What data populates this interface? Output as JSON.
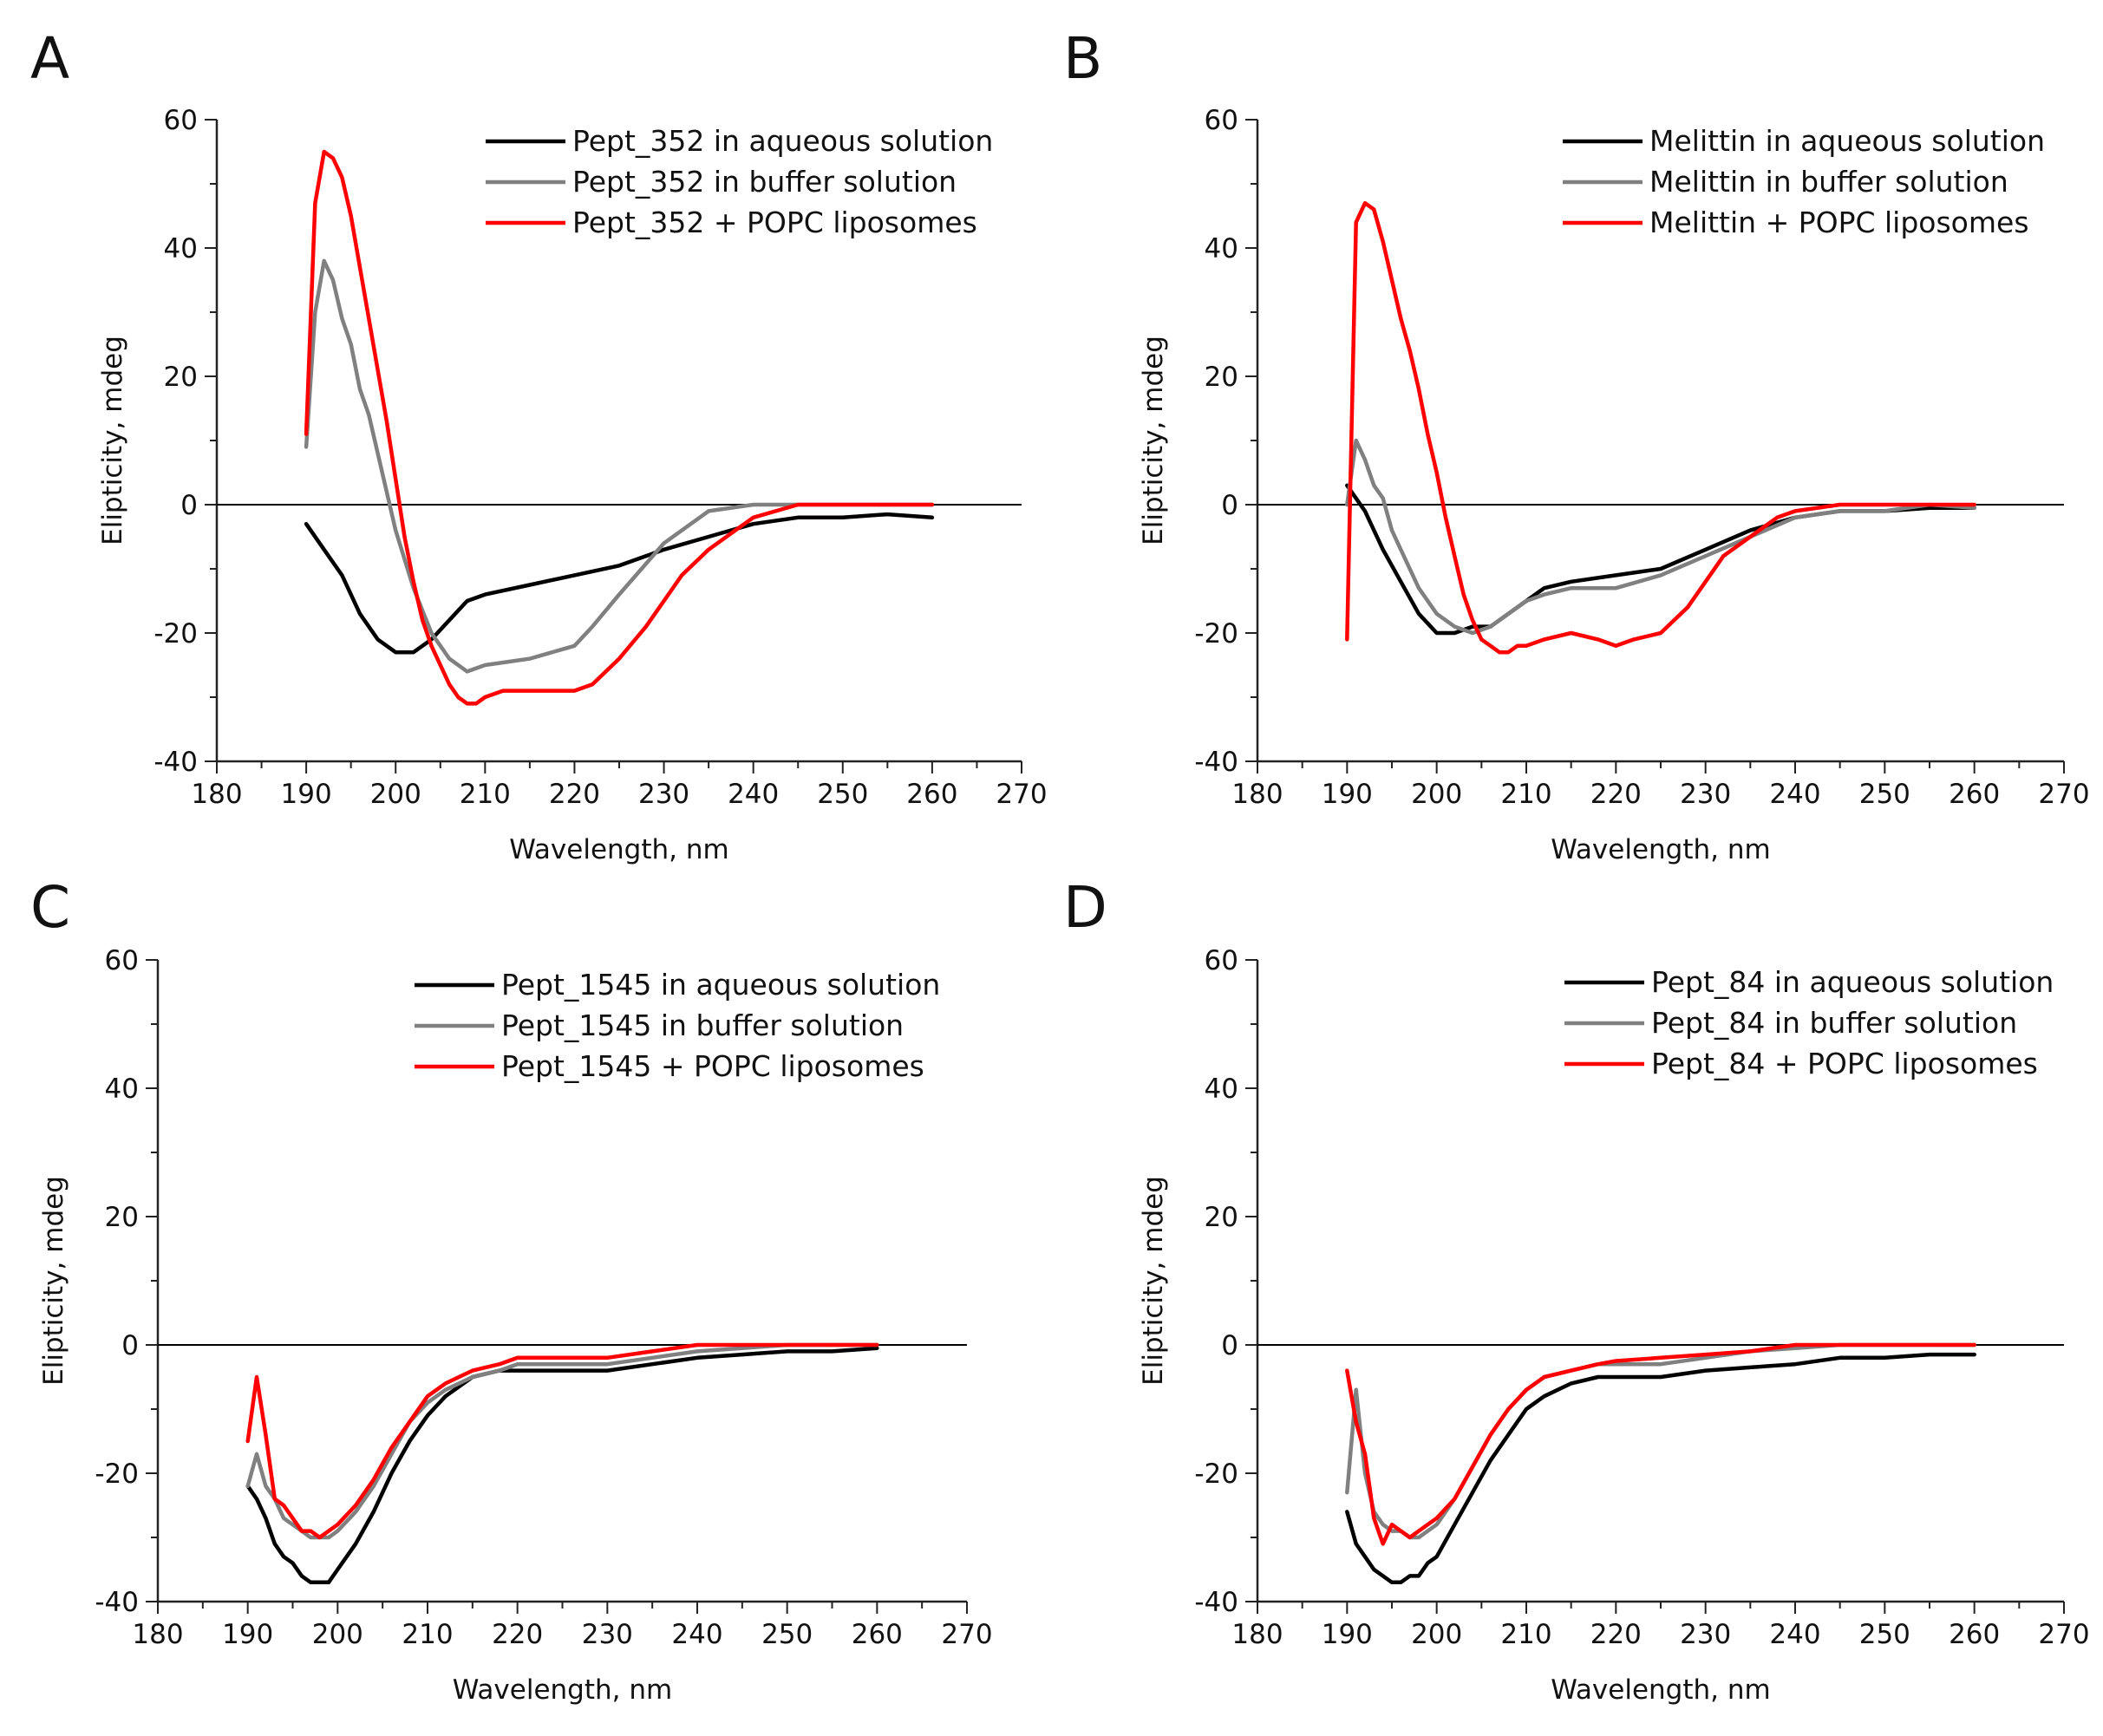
{
  "figure": {
    "panel_letters": [
      "A",
      "B",
      "C",
      "D"
    ]
  },
  "chart_data": [
    {
      "type": "line",
      "panel": "A",
      "xlabel": "Wavelength, nm",
      "ylabel": "Elipticity, mdeg",
      "xlim": [
        180,
        270
      ],
      "ylim": [
        -40,
        60
      ],
      "xticks": [
        180,
        190,
        200,
        210,
        220,
        230,
        240,
        250,
        260,
        270
      ],
      "yticks": [
        -40,
        -20,
        0,
        20,
        40,
        60
      ],
      "grid": false,
      "legend": "top-right",
      "series": [
        {
          "name": "Pept_352 in aqueous solution",
          "color": "#000000",
          "x": [
            190,
            192,
            194,
            196,
            198,
            200,
            202,
            204,
            206,
            208,
            210,
            215,
            220,
            225,
            230,
            235,
            240,
            245,
            250,
            255,
            260
          ],
          "y": [
            -3,
            -7,
            -11,
            -17,
            -21,
            -23,
            -23,
            -21,
            -18,
            -15,
            -14,
            -12.5,
            -11,
            -9.5,
            -7,
            -5,
            -3,
            -2,
            -2,
            -1.5,
            -2
          ]
        },
        {
          "name": "Pept_352 in buffer solution",
          "color": "#808080",
          "x": [
            190,
            191,
            192,
            193,
            194,
            195,
            196,
            197,
            198,
            199,
            200,
            202,
            204,
            206,
            208,
            210,
            215,
            220,
            222,
            225,
            230,
            235,
            240,
            245,
            250,
            255,
            260
          ],
          "y": [
            9,
            30,
            38,
            35,
            29,
            25,
            18,
            14,
            8,
            2,
            -4,
            -13,
            -20,
            -24,
            -26,
            -25,
            -24,
            -22,
            -19,
            -14,
            -6,
            -1,
            0,
            0,
            0,
            0,
            0
          ]
        },
        {
          "name": "Pept_352 + POPC liposomes",
          "color": "#ff0000",
          "x": [
            190,
            191,
            192,
            193,
            194,
            195,
            196,
            197,
            198,
            199,
            200,
            201,
            202,
            203,
            204,
            205,
            206,
            207,
            208,
            209,
            210,
            212,
            215,
            218,
            220,
            222,
            225,
            228,
            230,
            232,
            235,
            238,
            240,
            245,
            250,
            255,
            260
          ],
          "y": [
            11,
            47,
            55,
            54,
            51,
            45,
            37,
            29,
            21,
            13,
            4,
            -5,
            -12,
            -18,
            -22,
            -25,
            -28,
            -30,
            -31,
            -31,
            -30,
            -29,
            -29,
            -29,
            -29,
            -28,
            -24,
            -19,
            -15,
            -11,
            -7,
            -4,
            -2,
            0,
            0,
            0,
            0
          ]
        }
      ]
    },
    {
      "type": "line",
      "panel": "B",
      "xlabel": "Wavelength, nm",
      "ylabel": "Elipticity, mdeg",
      "xlim": [
        180,
        270
      ],
      "ylim": [
        -40,
        60
      ],
      "xticks": [
        180,
        190,
        200,
        210,
        220,
        230,
        240,
        250,
        260,
        270
      ],
      "yticks": [
        -40,
        -20,
        0,
        20,
        40,
        60
      ],
      "grid": false,
      "legend": "top-right",
      "series": [
        {
          "name": "Melittin in aqueous solution",
          "color": "#000000",
          "x": [
            190,
            192,
            194,
            196,
            198,
            200,
            202,
            204,
            206,
            208,
            210,
            212,
            215,
            220,
            225,
            230,
            235,
            240,
            245,
            250,
            255,
            260
          ],
          "y": [
            3,
            -1,
            -7,
            -12,
            -17,
            -20,
            -20,
            -19,
            -19,
            -17,
            -15,
            -13,
            -12,
            -11,
            -10,
            -7,
            -4,
            -2,
            -1,
            -1,
            -0.5,
            -0.5
          ]
        },
        {
          "name": "Melittin in buffer solution",
          "color": "#808080",
          "x": [
            190,
            191,
            192,
            193,
            194,
            195,
            196,
            198,
            200,
            202,
            204,
            206,
            208,
            210,
            212,
            215,
            220,
            225,
            230,
            235,
            240,
            245,
            250,
            255,
            260
          ],
          "y": [
            0,
            10,
            7,
            3,
            1,
            -4,
            -7,
            -13,
            -17,
            -19,
            -20,
            -19,
            -17,
            -15,
            -14,
            -13,
            -13,
            -11,
            -8,
            -5,
            -2,
            -1,
            -1,
            0,
            -0.5
          ]
        },
        {
          "name": "Melittin + POPC liposomes",
          "color": "#ff0000",
          "x": [
            190,
            191,
            192,
            193,
            194,
            195,
            196,
            197,
            198,
            199,
            200,
            201,
            202,
            203,
            204,
            205,
            206,
            207,
            208,
            209,
            210,
            212,
            215,
            218,
            220,
            222,
            225,
            228,
            230,
            232,
            235,
            238,
            240,
            245,
            250,
            255,
            260
          ],
          "y": [
            -21,
            44,
            47,
            46,
            41,
            35,
            29,
            24,
            18,
            11,
            5,
            -2,
            -8,
            -14,
            -18,
            -21,
            -22,
            -23,
            -23,
            -22,
            -22,
            -21,
            -20,
            -21,
            -22,
            -21,
            -20,
            -16,
            -12,
            -8,
            -5,
            -2,
            -1,
            0,
            0,
            0,
            0
          ]
        }
      ]
    },
    {
      "type": "line",
      "panel": "C",
      "xlabel": "Wavelength, nm",
      "ylabel": "Elipticity, mdeg",
      "xlim": [
        180,
        270
      ],
      "ylim": [
        -40,
        60
      ],
      "xticks": [
        180,
        190,
        200,
        210,
        220,
        230,
        240,
        250,
        260,
        270
      ],
      "yticks": [
        -40,
        -20,
        0,
        20,
        40,
        60
      ],
      "grid": false,
      "legend": "top-right",
      "series": [
        {
          "name": "Pept_1545 in aqueous solution",
          "color": "#000000",
          "x": [
            190,
            191,
            192,
            193,
            194,
            195,
            196,
            197,
            198,
            199,
            200,
            202,
            204,
            206,
            208,
            210,
            212,
            215,
            218,
            220,
            225,
            230,
            235,
            240,
            245,
            250,
            255,
            260
          ],
          "y": [
            -22,
            -24,
            -27,
            -31,
            -33,
            -34,
            -36,
            -37,
            -37,
            -37,
            -35,
            -31,
            -26,
            -20,
            -15,
            -11,
            -8,
            -5,
            -4,
            -4,
            -4,
            -4,
            -3,
            -2,
            -1.5,
            -1,
            -1,
            -0.5
          ]
        },
        {
          "name": "Pept_1545 in buffer solution",
          "color": "#808080",
          "x": [
            190,
            191,
            192,
            193,
            194,
            195,
            196,
            197,
            198,
            199,
            200,
            202,
            204,
            206,
            208,
            210,
            212,
            215,
            218,
            220,
            225,
            230,
            235,
            240,
            245,
            250,
            255,
            260
          ],
          "y": [
            -22,
            -17,
            -22,
            -24,
            -27,
            -28,
            -29,
            -30,
            -30,
            -30,
            -29,
            -26,
            -22,
            -17,
            -12,
            -9,
            -7,
            -5,
            -4,
            -3,
            -3,
            -3,
            -2,
            -1,
            -0.5,
            0,
            0,
            0
          ]
        },
        {
          "name": "Pept_1545 + POPC liposomes",
          "color": "#ff0000",
          "x": [
            190,
            191,
            192,
            193,
            194,
            195,
            196,
            197,
            198,
            199,
            200,
            202,
            204,
            206,
            208,
            210,
            212,
            215,
            218,
            220,
            225,
            230,
            235,
            240,
            245,
            250,
            255,
            260
          ],
          "y": [
            -15,
            -5,
            -14,
            -24,
            -25,
            -27,
            -29,
            -29,
            -30,
            -29,
            -28,
            -25,
            -21,
            -16,
            -12,
            -8,
            -6,
            -4,
            -3,
            -2,
            -2,
            -2,
            -1,
            0,
            0,
            0,
            0,
            0
          ]
        }
      ]
    },
    {
      "type": "line",
      "panel": "D",
      "xlabel": "Wavelength, nm",
      "ylabel": "Elipticity, mdeg",
      "xlim": [
        180,
        270
      ],
      "ylim": [
        -40,
        60
      ],
      "xticks": [
        180,
        190,
        200,
        210,
        220,
        230,
        240,
        250,
        260,
        270
      ],
      "yticks": [
        -40,
        -20,
        0,
        20,
        40,
        60
      ],
      "grid": false,
      "legend": "top-right",
      "series": [
        {
          "name": "Pept_84 in aqueous solution",
          "color": "#000000",
          "x": [
            190,
            191,
            192,
            193,
            194,
            195,
            196,
            197,
            198,
            199,
            200,
            202,
            204,
            206,
            208,
            210,
            212,
            215,
            218,
            220,
            225,
            230,
            235,
            240,
            245,
            250,
            255,
            260
          ],
          "y": [
            -26,
            -31,
            -33,
            -35,
            -36,
            -37,
            -37,
            -36,
            -36,
            -34,
            -33,
            -28,
            -23,
            -18,
            -14,
            -10,
            -8,
            -6,
            -5,
            -5,
            -5,
            -4,
            -3.5,
            -3,
            -2,
            -2,
            -1.5,
            -1.5
          ]
        },
        {
          "name": "Pept_84 in buffer solution",
          "color": "#808080",
          "x": [
            190,
            191,
            192,
            193,
            194,
            195,
            196,
            197,
            198,
            199,
            200,
            202,
            204,
            206,
            208,
            210,
            212,
            215,
            218,
            220,
            225,
            230,
            235,
            240,
            245,
            250,
            255,
            260
          ],
          "y": [
            -23,
            -7,
            -20,
            -26,
            -28,
            -29,
            -29,
            -30,
            -30,
            -29,
            -28,
            -24,
            -19,
            -14,
            -10,
            -7,
            -5,
            -4,
            -3,
            -3,
            -3,
            -2,
            -1,
            -0.5,
            0,
            0,
            0,
            0
          ]
        },
        {
          "name": "Pept_84 + POPC liposomes",
          "color": "#ff0000",
          "x": [
            190,
            191,
            192,
            193,
            194,
            195,
            196,
            197,
            198,
            199,
            200,
            202,
            204,
            206,
            208,
            210,
            212,
            215,
            218,
            220,
            225,
            230,
            235,
            240,
            245,
            250,
            255,
            260
          ],
          "y": [
            -4,
            -12,
            -17,
            -27,
            -31,
            -28,
            -29,
            -30,
            -29,
            -28,
            -27,
            -24,
            -19,
            -14,
            -10,
            -7,
            -5,
            -4,
            -3,
            -2.5,
            -2,
            -1.5,
            -1,
            0,
            0,
            0,
            0,
            0
          ]
        }
      ]
    }
  ]
}
